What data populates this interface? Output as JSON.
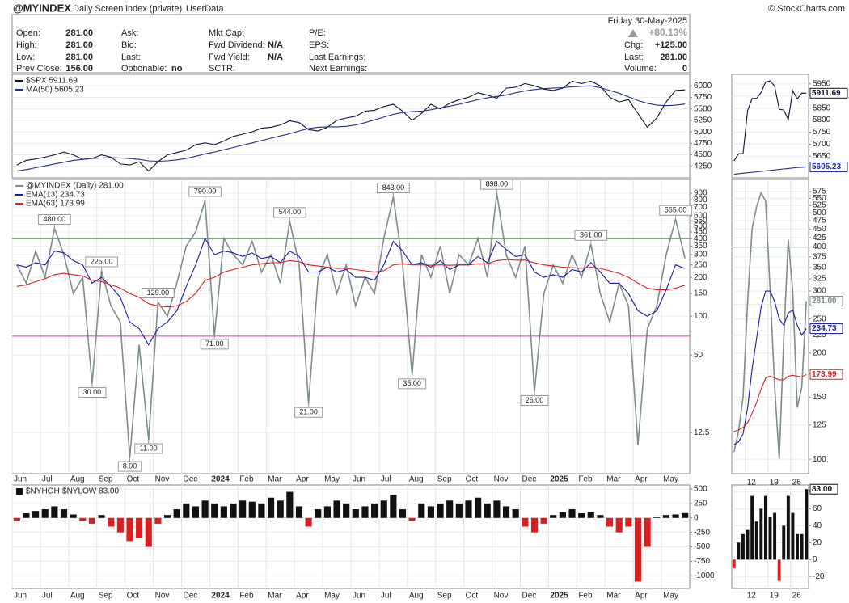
{
  "header": {
    "symbol": "@MYINDEX",
    "description": "Daily Screen index (private)",
    "source": "UserData",
    "copyright": "© StockCharts.com",
    "date": "Friday  30-May-2025",
    "change_pct": "+80.13%",
    "fields": [
      [
        {
          "label": "Open:",
          "value": "281.00"
        },
        {
          "label": "High:",
          "value": "281.00"
        },
        {
          "label": "Low:",
          "value": "281.00"
        },
        {
          "label": "Prev Close:",
          "value": "156.00"
        }
      ],
      [
        {
          "label": "Ask:"
        },
        {
          "label": "Bid:"
        },
        {
          "label": "Last:"
        },
        {
          "label": "Optionable:",
          "value": "no"
        }
      ],
      [
        {
          "label": "Mkt Cap:"
        },
        {
          "label": "Fwd Dividend:",
          "value": "N/A"
        },
        {
          "label": "Fwd Yield:",
          "value": "N/A"
        },
        {
          "label": "SCTR:"
        }
      ],
      [
        {
          "label": "P/E:"
        },
        {
          "label": "EPS:"
        },
        {
          "label": "Last Earnings:"
        },
        {
          "label": "Next Earnings:"
        }
      ]
    ],
    "summary": [
      {
        "label": "Chg:",
        "value": "+125.00"
      },
      {
        "label": "Last:",
        "value": "281.00"
      },
      {
        "label": "Volume:",
        "value": "0"
      }
    ]
  },
  "chart_data": [
    {
      "type": "line",
      "ylim": [
        4000,
        6250
      ],
      "yticks": [
        4250,
        4500,
        4750,
        5000,
        5250,
        5500,
        5750,
        6000
      ],
      "grid": true,
      "series": [
        {
          "name": "$SPX 5911.69",
          "color": "#111133",
          "values": [
            4280,
            4380,
            4410,
            4450,
            4500,
            4560,
            4500,
            4400,
            4420,
            4500,
            4450,
            4300,
            4280,
            4350,
            4150,
            4350,
            4500,
            4550,
            4600,
            4720,
            4760,
            4720,
            4800,
            4900,
            4950,
            5000,
            5080,
            5100,
            5150,
            5240,
            5200,
            5050,
            5020,
            5100,
            5250,
            5300,
            5340,
            5450,
            5470,
            5550,
            5600,
            5450,
            5250,
            5400,
            5600,
            5500,
            5620,
            5700,
            5750,
            5850,
            5800,
            5730,
            5950,
            5970,
            6050,
            6000,
            5930,
            5900,
            5950,
            6100,
            6050,
            6100,
            6000,
            5750,
            5650,
            5700,
            5400,
            5100,
            5300,
            5650,
            5900,
            5911.69
          ]
        },
        {
          "name": "MA(50) 5605.23",
          "color": "#1f2d8a",
          "values": [
            4150,
            4180,
            4220,
            4260,
            4300,
            4340,
            4380,
            4400,
            4420,
            4430,
            4440,
            4430,
            4420,
            4400,
            4370,
            4360,
            4370,
            4390,
            4420,
            4470,
            4520,
            4560,
            4610,
            4660,
            4710,
            4760,
            4810,
            4860,
            4910,
            4960,
            5020,
            5070,
            5100,
            5110,
            5110,
            5120,
            5150,
            5200,
            5260,
            5320,
            5380,
            5420,
            5440,
            5450,
            5480,
            5520,
            5560,
            5600,
            5650,
            5700,
            5740,
            5770,
            5800,
            5850,
            5890,
            5920,
            5940,
            5950,
            5960,
            5980,
            5990,
            6000,
            5960,
            5900,
            5840,
            5760,
            5680,
            5620,
            5580,
            5570,
            5580,
            5605.23
          ]
        }
      ]
    },
    {
      "type": "line",
      "log_scale": true,
      "ylim": [
        6,
        1150
      ],
      "yticks": [
        12.5,
        50,
        100,
        150,
        200,
        250,
        300,
        350,
        400,
        450,
        500,
        550,
        600,
        700,
        800,
        900
      ],
      "grid": true,
      "hlines": [
        {
          "value": 400,
          "color": "#2e8b2e"
        },
        {
          "value": 70,
          "color": "#cc33cc"
        }
      ],
      "categories": [
        "Jun",
        null,
        null,
        "Jul",
        null,
        null,
        "Aug",
        null,
        null,
        "Sep",
        null,
        null,
        "Oct",
        null,
        null,
        "Nov",
        null,
        null,
        "Dec",
        null,
        null,
        "2024",
        null,
        null,
        "Feb",
        null,
        null,
        "Mar",
        null,
        null,
        "Apr",
        null,
        null,
        "May",
        null,
        null,
        "Jun",
        null,
        null,
        "Jul",
        null,
        null,
        "Aug",
        null,
        null,
        "Sep",
        null,
        null,
        "Oct",
        null,
        null,
        "Nov",
        null,
        null,
        "Dec",
        null,
        null,
        "2025",
        null,
        null,
        "Feb",
        null,
        null,
        "Mar",
        null,
        null,
        "Apr",
        null,
        null,
        "May",
        null,
        null
      ],
      "series": [
        {
          "name": "@MYINDEX (Daily) 281.00",
          "color": "#7f8c8d",
          "values": [
            250,
            180,
            320,
            200,
            480,
            300,
            150,
            200,
            30,
            225,
            120,
            90,
            8,
            60,
            11,
            129,
            100,
            180,
            350,
            450,
            790,
            71,
            400,
            300,
            250,
            380,
            220,
            300,
            180,
            544,
            250,
            21,
            200,
            300,
            150,
            250,
            120,
            200,
            150,
            400,
            843,
            250,
            35,
            300,
            200,
            350,
            150,
            300,
            250,
            400,
            200,
            898,
            300,
            200,
            350,
            26,
            150,
            250,
            180,
            300,
            200,
            361,
            150,
            90,
            180,
            120,
            10,
            80,
            120,
            300,
            565,
            281
          ],
          "value_labels": [
            null,
            null,
            null,
            null,
            "480.00",
            null,
            null,
            null,
            "30.00",
            "225.00",
            null,
            null,
            "8.00",
            null,
            "11.00",
            "129.00",
            null,
            null,
            null,
            null,
            "790.00",
            "71.00",
            null,
            null,
            null,
            null,
            null,
            null,
            null,
            "544.00",
            null,
            "21.00",
            null,
            null,
            null,
            null,
            null,
            null,
            null,
            null,
            "843.00",
            null,
            "35.00",
            null,
            null,
            null,
            null,
            null,
            null,
            null,
            null,
            "898.00",
            null,
            null,
            null,
            "26.00",
            null,
            null,
            null,
            null,
            null,
            "361.00",
            null,
            null,
            null,
            null,
            null,
            null,
            null,
            null,
            "565.00",
            null
          ]
        },
        {
          "name": "EMA(13) 234.73",
          "color": "#1a1aa0",
          "values": [
            250,
            240,
            260,
            250,
            320,
            310,
            270,
            250,
            180,
            200,
            170,
            140,
            90,
            80,
            60,
            80,
            90,
            110,
            170,
            250,
            400,
            300,
            320,
            310,
            290,
            310,
            280,
            290,
            260,
            320,
            290,
            220,
            220,
            240,
            220,
            230,
            200,
            200,
            190,
            250,
            380,
            320,
            250,
            260,
            240,
            270,
            230,
            250,
            250,
            290,
            260,
            380,
            330,
            290,
            300,
            220,
            200,
            210,
            200,
            230,
            220,
            260,
            220,
            180,
            180,
            150,
            110,
            100,
            110,
            160,
            250,
            234.73
          ]
        },
        {
          "name": "EMA(63) 173.99",
          "color": "#d62020",
          "values": [
            170,
            175,
            185,
            195,
            210,
            215,
            210,
            205,
            190,
            185,
            175,
            165,
            150,
            140,
            125,
            120,
            118,
            120,
            130,
            150,
            190,
            200,
            220,
            230,
            240,
            250,
            255,
            260,
            260,
            270,
            265,
            250,
            245,
            240,
            235,
            235,
            230,
            225,
            220,
            225,
            250,
            255,
            250,
            250,
            248,
            250,
            248,
            250,
            250,
            255,
            255,
            270,
            275,
            272,
            272,
            260,
            250,
            245,
            240,
            238,
            235,
            240,
            235,
            225,
            215,
            200,
            180,
            165,
            160,
            160,
            165,
            173.99
          ]
        }
      ]
    },
    {
      "type": "bar",
      "ylim": [
        -1220,
        570
      ],
      "yticks": [
        500,
        250,
        0,
        -250,
        -500,
        -750,
        -1000
      ],
      "grid": true,
      "categories": [
        "Jun",
        null,
        null,
        "Jul",
        null,
        null,
        "Aug",
        null,
        null,
        "Sep",
        null,
        null,
        "Oct",
        null,
        null,
        "Nov",
        null,
        null,
        "Dec",
        null,
        null,
        "2024",
        null,
        null,
        "Feb",
        null,
        null,
        "Mar",
        null,
        null,
        "Apr",
        null,
        null,
        "May",
        null,
        null,
        "Jun",
        null,
        null,
        "Jul",
        null,
        null,
        "Aug",
        null,
        null,
        "Sep",
        null,
        null,
        "Oct",
        null,
        null,
        "Nov",
        null,
        null,
        "Dec",
        null,
        null,
        "2025",
        null,
        null,
        "Feb",
        null,
        null,
        "Mar",
        null,
        null,
        "Apr",
        null,
        null,
        "May",
        null,
        null
      ],
      "series": [
        {
          "name": "$NYHGH-$NYLOW 83.00",
          "color": "#111111",
          "neg_color": "#d62020",
          "values": [
            -50,
            80,
            120,
            150,
            200,
            150,
            60,
            -50,
            -100,
            50,
            -150,
            -250,
            -400,
            -350,
            -500,
            -100,
            50,
            150,
            250,
            200,
            300,
            250,
            200,
            250,
            300,
            280,
            250,
            350,
            300,
            450,
            200,
            -150,
            150,
            200,
            300,
            250,
            150,
            200,
            250,
            300,
            400,
            150,
            -50,
            250,
            200,
            250,
            300,
            250,
            300,
            350,
            250,
            300,
            200,
            150,
            -150,
            -250,
            -100,
            50,
            100,
            150,
            80,
            100,
            50,
            -150,
            -250,
            -150,
            -1100,
            -500,
            20,
            50,
            60,
            83
          ]
        }
      ]
    },
    {
      "type": "line",
      "ylim": [
        5560,
        5990
      ],
      "yticks": [
        5650,
        5700,
        5750,
        5800,
        5850,
        5900,
        5950
      ],
      "grid": true,
      "series": [
        {
          "color": "#111133",
          "last_label": "5911.69",
          "values": [
            5630,
            5660,
            5660,
            5840,
            5890,
            5890,
            5915,
            5958,
            5963,
            5940,
            5845,
            5842,
            5802,
            5922,
            5888,
            5912,
            5911.69
          ]
        },
        {
          "color": "#1f2d8a",
          "last_label": "5605.23",
          "values": [
            5575,
            5577,
            5579,
            5581,
            5583,
            5585,
            5587,
            5589,
            5591,
            5593,
            5595,
            5597,
            5599,
            5601,
            5603,
            5604,
            5605.23
          ]
        }
      ]
    },
    {
      "type": "line",
      "log_scale": true,
      "ylim": [
        91,
        622
      ],
      "yticks": [
        100,
        125,
        150,
        175,
        200,
        225,
        250,
        275,
        300,
        325,
        350,
        375,
        400,
        425,
        450,
        475,
        500,
        525,
        550,
        575
      ],
      "grid": true,
      "hlines": [
        {
          "value": 400,
          "color": "#2e8b2e"
        }
      ],
      "categories": [
        null,
        null,
        null,
        "12",
        null,
        null,
        null,
        null,
        "19",
        null,
        null,
        null,
        null,
        "26",
        null,
        null,
        null
      ],
      "series": [
        {
          "color": "#7f8c8d",
          "last_label": "281.00",
          "values": [
            105,
            120,
            150,
            280,
            450,
            520,
            570,
            540,
            300,
            160,
            100,
            220,
            420,
            300,
            140,
            160,
            281
          ]
        },
        {
          "color": "#1a1aa0",
          "last_label": "234.73",
          "values": [
            110,
            112,
            118,
            140,
            180,
            220,
            270,
            300,
            300,
            280,
            250,
            240,
            260,
            265,
            240,
            225,
            234.73
          ]
        },
        {
          "color": "#d62020",
          "last_label": "173.99",
          "values": [
            120,
            121,
            123,
            127,
            135,
            145,
            158,
            170,
            172,
            170,
            168,
            168,
            172,
            173,
            172,
            171,
            173.99
          ]
        }
      ]
    },
    {
      "type": "bar",
      "ylim": [
        -34,
        88
      ],
      "yticks": [
        80,
        60,
        40,
        20,
        0,
        -20
      ],
      "grid": true,
      "categories": [
        null,
        null,
        null,
        "12",
        null,
        null,
        null,
        null,
        "19",
        null,
        null,
        null,
        null,
        "26",
        null,
        null,
        null
      ],
      "series": [
        {
          "color": "#111111",
          "neg_color": "#d62020",
          "last_label": "83.00",
          "values": [
            -10,
            20,
            30,
            35,
            75,
            45,
            60,
            75,
            50,
            55,
            -25,
            40,
            75,
            55,
            30,
            30,
            83
          ]
        }
      ]
    }
  ]
}
